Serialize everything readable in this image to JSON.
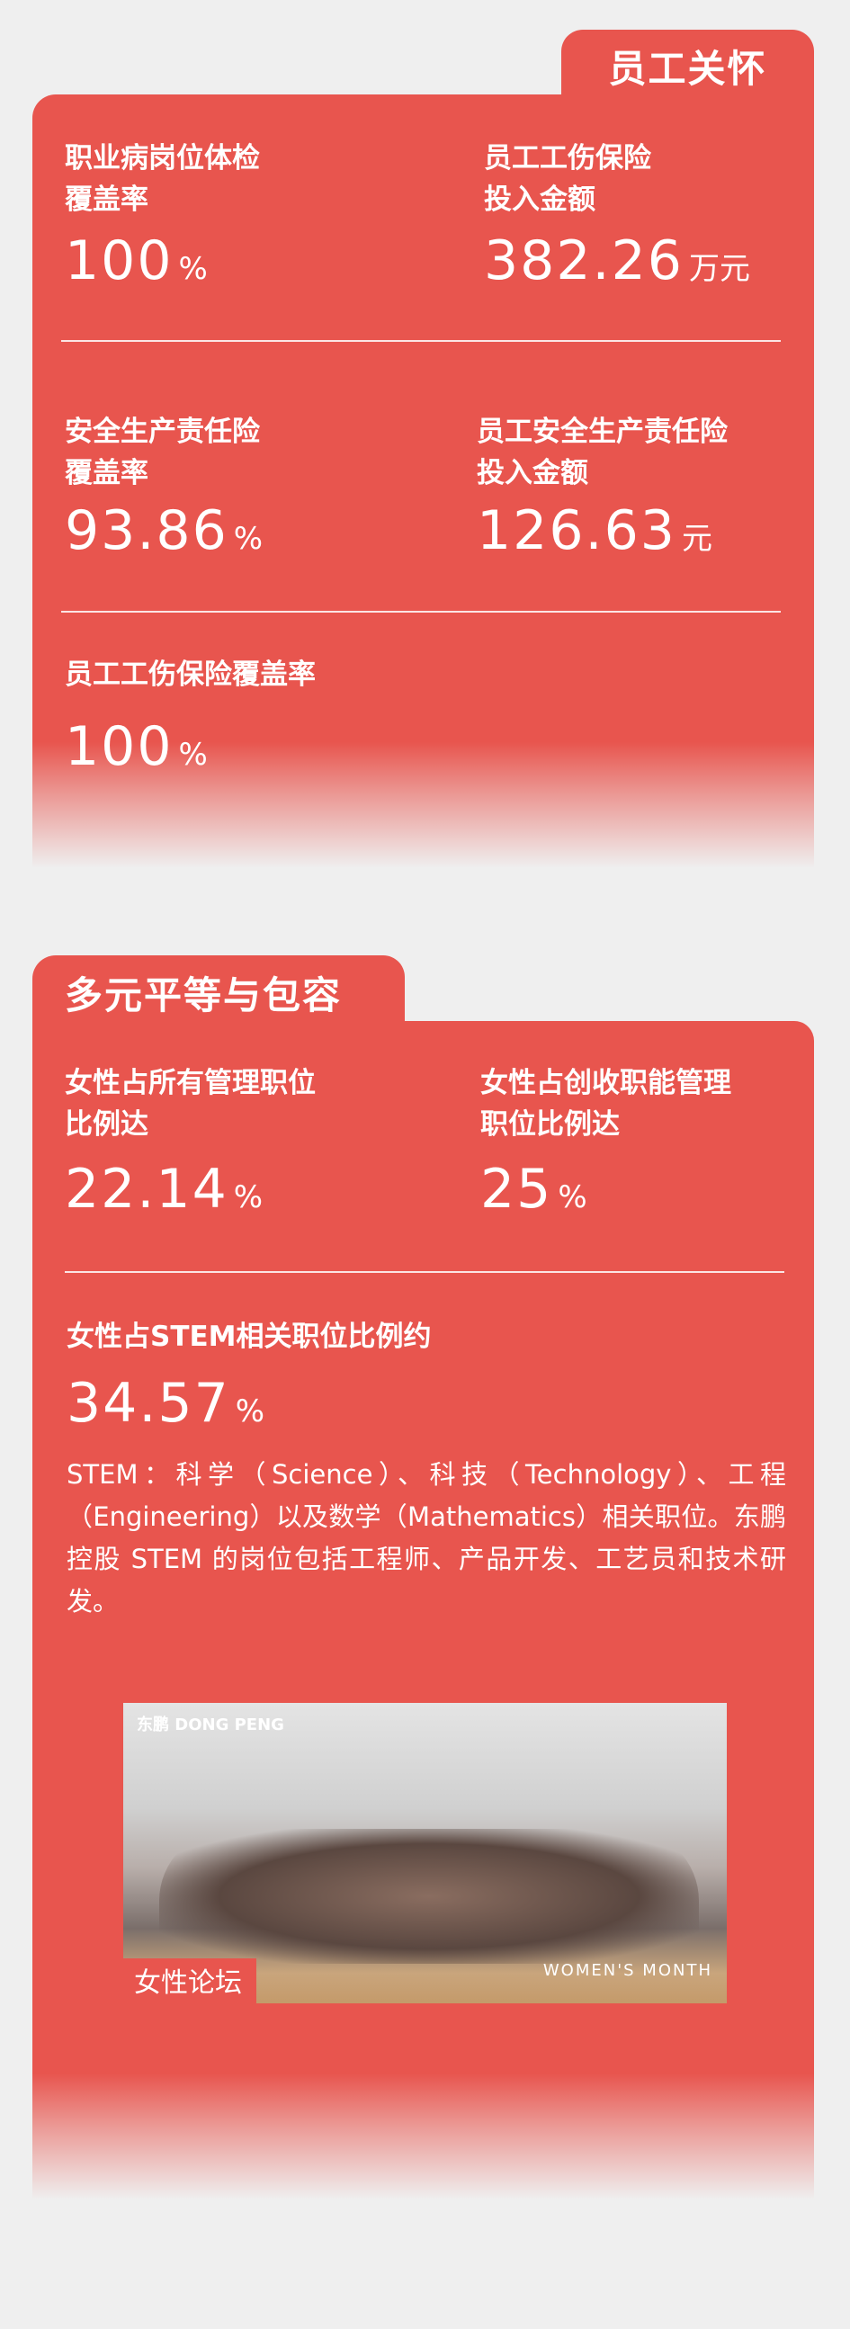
{
  "employee_care": {
    "title": "员工关怀",
    "metrics": [
      {
        "label_line1": "职业病岗位体检",
        "label_line2": "覆盖率",
        "value": "100",
        "unit": "%"
      },
      {
        "label_line1": "员工工伤保险",
        "label_line2": "投入金额",
        "value": "382.26",
        "unit": "万元"
      },
      {
        "label_line1": "安全生产责任险",
        "label_line2": "覆盖率",
        "value": "93.86",
        "unit": "%"
      },
      {
        "label_line1": "员工安全生产责任险",
        "label_line2": "投入金额",
        "value": "126.63",
        "unit": "元"
      },
      {
        "label_line1": "员工工伤保险覆盖率",
        "value": "100",
        "unit": "%"
      }
    ]
  },
  "diversity": {
    "title": "多元平等与包容",
    "metrics": [
      {
        "label_line1": "女性占所有管理职位",
        "label_line2": "比例达",
        "value": "22.14",
        "unit": "%"
      },
      {
        "label_line1": "女性占创收职能管理",
        "label_line2": "职位比例达",
        "value": "25",
        "unit": "%"
      },
      {
        "label_line1": "女性占STEM相关职位比例约",
        "value": "34.57",
        "unit": "%"
      }
    ],
    "note": "STEM：科学（Science）、科技（Technology）、工程（Engineering）以及数学（Mathematics）相关职位。东鹏控股 STEM 的岗位包括工程师、产品开发、工艺员和技术研发。",
    "photo": {
      "caption": "女性论坛",
      "logo": "东鹏 DONG PENG",
      "banner": "WOMEN'S MONTH"
    }
  },
  "colors": {
    "accent": "#e8554e",
    "background": "#efefef"
  }
}
